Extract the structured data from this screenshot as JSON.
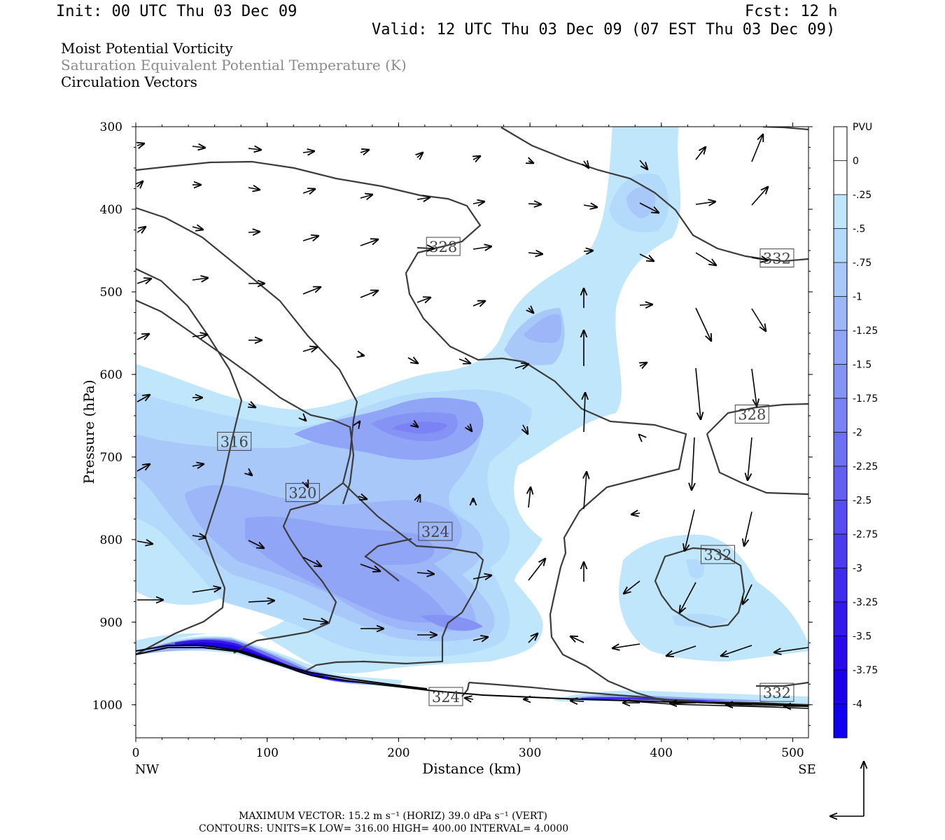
{
  "header": {
    "init": "Init: 00 UTC Thu 03 Dec 09",
    "fcst": "Fcst:   12 h",
    "valid": "Valid: 12 UTC Thu 03 Dec 09 (07 EST Thu 03 Dec 09)",
    "field1": "Moist Potential Vorticity",
    "field2": "Saturation Equivalent Potential Temperature (K)",
    "field3": "Circulation Vectors"
  },
  "footer": {
    "max_vector": "MAXIMUM VECTOR:  15.2 m s⁻¹ (HORIZ)          39.0 dPa s⁻¹ (VERT)",
    "contours": "CONTOURS:  UNITS=K  LOW=  316.00       HIGH=  400.00       INTERVAL=    4.0000"
  },
  "chart_data": {
    "type": "cross-section",
    "xlabel": "Distance (km)",
    "ylabel": "Pressure (hPa)",
    "x_left_label": "NW",
    "x_right_label": "SE",
    "xlim": [
      0,
      512
    ],
    "ylim": [
      1040,
      300
    ],
    "x_ticks": [
      0,
      100,
      200,
      300,
      400,
      500
    ],
    "y_ticks": [
      300,
      400,
      500,
      600,
      700,
      800,
      900,
      1000
    ],
    "colorbar": {
      "unit": "PVU",
      "levels": [
        "0",
        "-.25",
        "-.5",
        "-.75",
        "-1",
        "-1.25",
        "-1.5",
        "-1.75",
        "-2",
        "-2.25",
        "-2.5",
        "-2.75",
        "-3",
        "-3.25",
        "-3.5",
        "-3.75",
        "-4"
      ],
      "colors": [
        "#ffffff",
        "#ffffff",
        "#bfe6fa",
        "#b3d9fb",
        "#a8c8fa",
        "#9cb6f8",
        "#91a5f7",
        "#8593f5",
        "#7a82f4",
        "#6e70f2",
        "#625ff1",
        "#574df0",
        "#4b3cee",
        "#402bed",
        "#3419eb",
        "#2908ea",
        "#1e00e8",
        "#0f00f0"
      ]
    },
    "contour_labels": [
      {
        "text": "316",
        "x": 75,
        "y": 681
      },
      {
        "text": "320",
        "x": 127,
        "y": 743
      },
      {
        "text": "324",
        "x": 228,
        "y": 790
      },
      {
        "text": "328",
        "x": 234,
        "y": 445
      },
      {
        "text": "332",
        "x": 488,
        "y": 459
      },
      {
        "text": "328",
        "x": 469,
        "y": 648
      },
      {
        "text": "332",
        "x": 443,
        "y": 818
      },
      {
        "text": "324",
        "x": 236,
        "y": 990
      },
      {
        "text": "332",
        "x": 488,
        "y": 985
      }
    ]
  }
}
